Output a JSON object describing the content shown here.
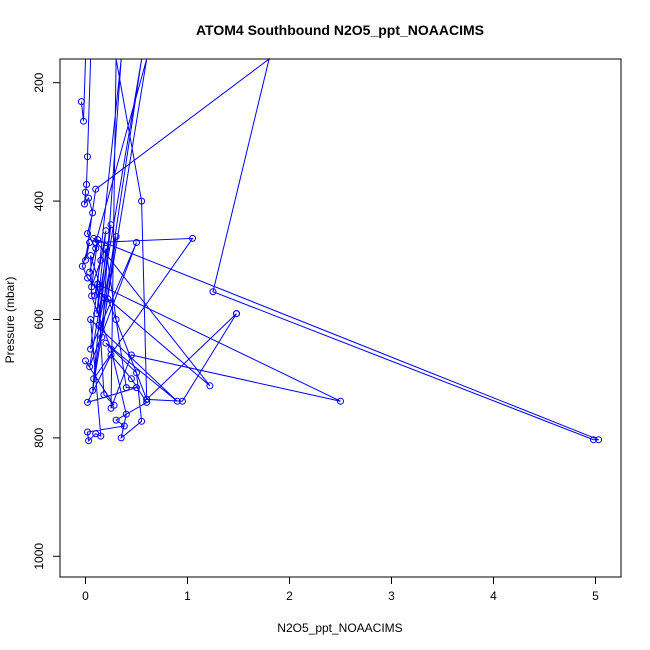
{
  "chart_data": {
    "type": "line",
    "title": "ATOM4 Southbound N2O5_ppt_NOAACIMS",
    "xlabel": "N2O5_ppt_NOAACIMS",
    "ylabel": "Pressure (mbar)",
    "xlim": [
      -0.25,
      5.25
    ],
    "ylim": [
      1035,
      160
    ],
    "y_reversed": true,
    "grid": false,
    "legend": "none",
    "x_ticks": [
      0,
      1,
      2,
      3,
      4,
      5
    ],
    "y_ticks": [
      200,
      400,
      600,
      800,
      1000
    ],
    "x_tick_labels": [
      "0",
      "1",
      "2",
      "3",
      "4",
      "5"
    ],
    "y_tick_labels": [
      "200",
      "400",
      "600",
      "800",
      "1000"
    ],
    "line_color": "#0000ff",
    "series": [
      {
        "points": [
          [
            -0.04,
            232
          ],
          [
            -0.02,
            265
          ],
          [
            0.0,
            160
          ],
          [
            0.05,
            160
          ],
          [
            0.02,
            325
          ],
          [
            0.01,
            372
          ],
          [
            0.0,
            385
          ],
          [
            -0.01,
            405
          ],
          [
            0.03,
            395
          ],
          [
            0.07,
            420
          ],
          [
            0.02,
            455
          ],
          [
            0.1,
            480
          ],
          [
            0.04,
            520
          ],
          [
            0.12,
            465
          ],
          [
            0.06,
            545
          ],
          [
            0.15,
            500
          ],
          [
            0.09,
            560
          ],
          [
            0.2,
            450
          ],
          [
            0.11,
            590
          ],
          [
            0.25,
            440
          ],
          [
            0.13,
            610
          ],
          [
            0.3,
            460
          ],
          [
            0.16,
            630
          ],
          [
            0.35,
            160
          ],
          [
            0.05,
            650
          ],
          [
            0.5,
            470
          ],
          [
            0.04,
            680
          ],
          [
            0.55,
            160
          ],
          [
            0.08,
            700
          ],
          [
            1.05,
            463
          ],
          [
            0.1,
            470
          ],
          [
            0.6,
            160
          ],
          [
            0.07,
            720
          ],
          [
            0.2,
            480
          ],
          [
            0.3,
            600
          ],
          [
            0.4,
            715
          ],
          [
            0.5,
            715
          ],
          [
            0.02,
            740
          ],
          [
            0.25,
            660
          ],
          [
            0.45,
            700
          ],
          [
            0.6,
            740
          ],
          [
            0.3,
            770
          ],
          [
            0.38,
            780
          ],
          [
            0.02,
            790
          ],
          [
            0.03,
            805
          ],
          [
            0.1,
            793
          ],
          [
            0.15,
            797
          ],
          [
            0.05,
            600
          ],
          [
            0.9,
            738
          ],
          [
            0.2,
            640
          ],
          [
            0.5,
            690
          ],
          [
            0.55,
            772
          ],
          [
            0.35,
            800
          ],
          [
            0.4,
            760
          ],
          [
            0.25,
            650
          ],
          [
            0.06,
            560
          ],
          [
            0.05,
            492
          ],
          [
            0.18,
            563
          ],
          [
            0.02,
            530
          ],
          [
            -0.03,
            510
          ],
          [
            0.04,
            470
          ],
          [
            0.0,
            500
          ],
          [
            0.1,
            380
          ],
          [
            1.8,
            160
          ],
          [
            1.25,
            553
          ],
          [
            4.98,
            803
          ],
          [
            5.03,
            803
          ],
          [
            0.08,
            463
          ],
          [
            1.22,
            712
          ],
          [
            0.22,
            565
          ],
          [
            0.6,
            735
          ],
          [
            0.55,
            400
          ],
          [
            0.3,
            160
          ],
          [
            0.25,
            750
          ],
          [
            0.45,
            660
          ],
          [
            2.5,
            738
          ],
          [
            0.12,
            540
          ],
          [
            0.18,
            727
          ],
          [
            0.28,
            745
          ],
          [
            0.0,
            670
          ]
        ]
      },
      {
        "points": [
          [
            1.48,
            590
          ],
          [
            0.6,
            735
          ],
          [
            0.95,
            738
          ],
          [
            1.48,
            590
          ]
        ]
      }
    ]
  }
}
